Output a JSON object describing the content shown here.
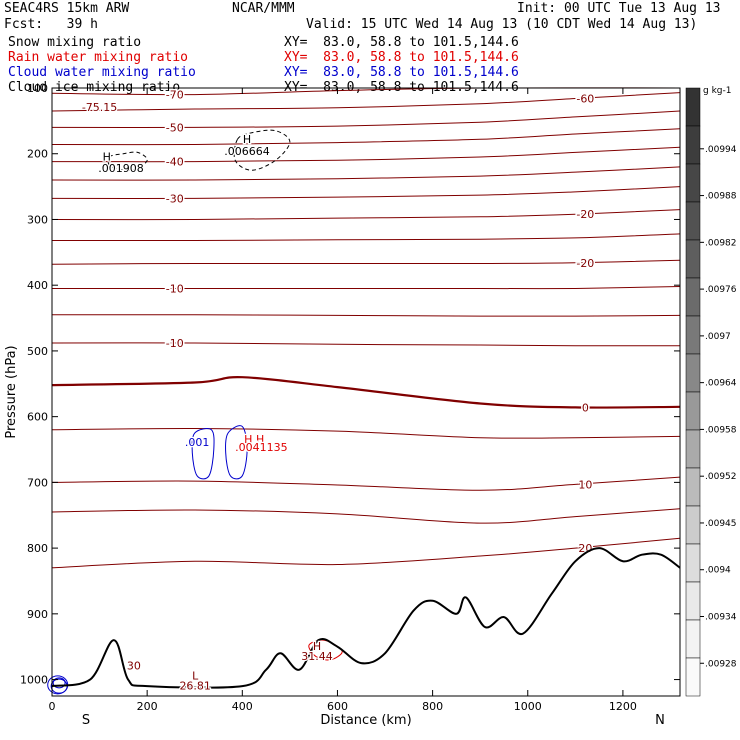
{
  "header": {
    "title": "SEAC4RS 15km ARW",
    "forecast": "Fcst:   39 h",
    "center": "NCAR/MMM",
    "init": "Init: 00 UTC Tue 13 Aug 13",
    "valid": "Valid: 15 UTC Wed 14 Aug 13 (10 CDT Wed 14 Aug 13)",
    "fields": [
      {
        "name": "Snow mixing ratio",
        "xy": "XY=  83.0, 58.8 to 101.5,144.6",
        "color": "#000000"
      },
      {
        "name": "Rain water mixing ratio",
        "xy": "XY=  83.0, 58.8 to 101.5,144.6",
        "color": "#e00000"
      },
      {
        "name": "Cloud water mixing ratio",
        "xy": "XY=  83.0, 58.8 to 101.5,144.6",
        "color": "#0000cc"
      },
      {
        "name": "Cloud ice mixing ratio",
        "xy": "XY=  83.0, 58.8 to 101.5,144.6",
        "color": "#000000"
      }
    ]
  },
  "chart_data": {
    "type": "line",
    "xlabel": "Distance (km)",
    "ylabel": "Pressure (hPa)",
    "xlim": [
      0,
      1320
    ],
    "ylim": [
      1025,
      100
    ],
    "xticks": [
      0,
      200,
      400,
      600,
      800,
      1000,
      1200
    ],
    "yticks": [
      100,
      200,
      300,
      400,
      500,
      600,
      700,
      800,
      900,
      1000
    ],
    "x_end_labels": {
      "left": "S",
      "right": "N"
    },
    "temperature_contours": [
      {
        "label": "-70",
        "values": [
          [
            0,
            108
          ],
          [
            300,
            110
          ],
          [
            600,
            104
          ],
          [
            900,
            100
          ],
          [
            1320,
            100
          ]
        ]
      },
      {
        "label": "-60",
        "values": [
          [
            0,
            135
          ],
          [
            300,
            132
          ],
          [
            600,
            130
          ],
          [
            900,
            124
          ],
          [
            1100,
            116
          ],
          [
            1320,
            107
          ]
        ]
      },
      {
        "label": "-50",
        "values": [
          [
            0,
            160
          ],
          [
            300,
            160
          ],
          [
            600,
            158
          ],
          [
            900,
            152
          ],
          [
            1100,
            144
          ],
          [
            1320,
            135
          ]
        ]
      },
      {
        "label": "",
        "values": [
          [
            0,
            186
          ],
          [
            300,
            186
          ],
          [
            600,
            183
          ],
          [
            900,
            178
          ],
          [
            1100,
            170
          ],
          [
            1320,
            162
          ]
        ]
      },
      {
        "label": "-40",
        "values": [
          [
            0,
            212
          ],
          [
            300,
            212
          ],
          [
            600,
            210
          ],
          [
            900,
            205
          ],
          [
            1100,
            198
          ],
          [
            1320,
            190
          ]
        ]
      },
      {
        "label": "",
        "values": [
          [
            0,
            240
          ],
          [
            300,
            240
          ],
          [
            600,
            238
          ],
          [
            900,
            234
          ],
          [
            1100,
            228
          ],
          [
            1320,
            220
          ]
        ]
      },
      {
        "label": "-30",
        "values": [
          [
            0,
            268
          ],
          [
            300,
            268
          ],
          [
            600,
            266
          ],
          [
            900,
            263
          ],
          [
            1100,
            258
          ],
          [
            1320,
            250
          ]
        ]
      },
      {
        "label": "-20",
        "values": [
          [
            0,
            300
          ],
          [
            300,
            300
          ],
          [
            600,
            298
          ],
          [
            900,
            296
          ],
          [
            1100,
            292
          ],
          [
            1320,
            285
          ]
        ]
      },
      {
        "label": "",
        "values": [
          [
            0,
            332
          ],
          [
            300,
            332
          ],
          [
            600,
            331
          ],
          [
            900,
            330
          ],
          [
            1100,
            328
          ],
          [
            1320,
            322
          ]
        ]
      },
      {
        "label": "-20",
        "values": [
          [
            0,
            368
          ],
          [
            300,
            367
          ],
          [
            600,
            367
          ],
          [
            900,
            367
          ],
          [
            1100,
            366
          ],
          [
            1320,
            362
          ]
        ]
      },
      {
        "label": "-10",
        "values": [
          [
            0,
            405
          ],
          [
            300,
            405
          ],
          [
            600,
            405
          ],
          [
            900,
            405
          ],
          [
            1100,
            405
          ],
          [
            1320,
            402
          ]
        ]
      },
      {
        "label": "",
        "values": [
          [
            0,
            445
          ],
          [
            300,
            445
          ],
          [
            600,
            446
          ],
          [
            900,
            447
          ],
          [
            1100,
            447
          ],
          [
            1320,
            446
          ]
        ]
      },
      {
        "label": "-10",
        "values": [
          [
            0,
            488
          ],
          [
            300,
            488
          ],
          [
            600,
            490
          ],
          [
            900,
            491
          ],
          [
            1100,
            492
          ],
          [
            1320,
            492
          ]
        ]
      },
      {
        "label": "0",
        "values": [
          [
            0,
            552
          ],
          [
            300,
            548
          ],
          [
            400,
            540
          ],
          [
            600,
            555
          ],
          [
            900,
            580
          ],
          [
            1100,
            586
          ],
          [
            1320,
            585
          ]
        ]
      },
      {
        "label": "",
        "values": [
          [
            0,
            620
          ],
          [
            300,
            618
          ],
          [
            600,
            622
          ],
          [
            900,
            632
          ],
          [
            1100,
            632
          ],
          [
            1320,
            630
          ]
        ]
      },
      {
        "label": "10",
        "values": [
          [
            0,
            700
          ],
          [
            300,
            698
          ],
          [
            600,
            704
          ],
          [
            900,
            712
          ],
          [
            1100,
            703
          ],
          [
            1320,
            692
          ]
        ]
      },
      {
        "label": "",
        "values": [
          [
            0,
            745
          ],
          [
            300,
            742
          ],
          [
            600,
            748
          ],
          [
            900,
            762
          ],
          [
            1100,
            752
          ],
          [
            1320,
            740
          ]
        ]
      },
      {
        "label": "20",
        "values": [
          [
            0,
            830
          ],
          [
            300,
            820
          ],
          [
            600,
            825
          ],
          [
            900,
            812
          ],
          [
            1100,
            800
          ],
          [
            1320,
            785
          ]
        ]
      }
    ],
    "terrain_profile": [
      [
        0,
        1010
      ],
      [
        80,
        1000
      ],
      [
        130,
        940
      ],
      [
        160,
        1000
      ],
      [
        200,
        1010
      ],
      [
        400,
        1010
      ],
      [
        450,
        985
      ],
      [
        480,
        960
      ],
      [
        520,
        985
      ],
      [
        560,
        940
      ],
      [
        600,
        950
      ],
      [
        650,
        975
      ],
      [
        700,
        960
      ],
      [
        760,
        895
      ],
      [
        800,
        880
      ],
      [
        850,
        900
      ],
      [
        870,
        875
      ],
      [
        910,
        920
      ],
      [
        950,
        905
      ],
      [
        990,
        930
      ],
      [
        1050,
        870
      ],
      [
        1100,
        820
      ],
      [
        1150,
        800
      ],
      [
        1200,
        820
      ],
      [
        1240,
        810
      ],
      [
        1280,
        810
      ],
      [
        1320,
        830
      ]
    ],
    "annotations": [
      {
        "text": "-75.15",
        "x": 100,
        "y": 135
      },
      {
        "text": "H",
        "x": 115,
        "y": 210
      },
      {
        "text": ".001908",
        "x": 145,
        "y": 228
      },
      {
        "text": "H",
        "x": 410,
        "y": 184
      },
      {
        "text": ".006664",
        "x": 410,
        "y": 202
      },
      {
        "text": ".001",
        "x": 305,
        "y": 645
      },
      {
        "text": "H H",
        "x": 425,
        "y": 640
      },
      {
        "text": ".0041135",
        "x": 440,
        "y": 652
      },
      {
        "text": "H",
        "x": 557,
        "y": 955
      },
      {
        "text": "31.44",
        "x": 557,
        "y": 970
      },
      {
        "text": "30",
        "x": 172,
        "y": 985
      },
      {
        "text": "L",
        "x": 301,
        "y": 1000
      },
      {
        "text": "26.81",
        "x": 301,
        "y": 1015
      }
    ],
    "snow_contours": [
      {
        "level": "0.001908",
        "closed": true,
        "points": [
          [
            120,
            205
          ],
          [
            150,
            200
          ],
          [
            180,
            198
          ],
          [
            200,
            210
          ],
          [
            170,
            225
          ],
          [
            125,
            220
          ]
        ]
      },
      {
        "level": "0.006664",
        "closed": true,
        "points": [
          [
            390,
            178
          ],
          [
            420,
            168
          ],
          [
            470,
            165
          ],
          [
            500,
            182
          ],
          [
            470,
            210
          ],
          [
            420,
            225
          ],
          [
            385,
            210
          ]
        ]
      }
    ],
    "cloud_water_contours": [
      {
        "level": "0.001",
        "closed": true,
        "points": [
          [
            300,
            625
          ],
          [
            335,
            620
          ],
          [
            340,
            650
          ],
          [
            330,
            690
          ],
          [
            305,
            690
          ],
          [
            295,
            655
          ]
        ]
      },
      {
        "level": "",
        "closed": true,
        "points": [
          [
            370,
            625
          ],
          [
            400,
            615
          ],
          [
            410,
            650
          ],
          [
            400,
            690
          ],
          [
            375,
            690
          ],
          [
            365,
            655
          ]
        ]
      }
    ],
    "colorbar": {
      "unit": "g kg-1",
      "labels": [
        ".00994",
        ".00988",
        ".00982",
        ".00976",
        ".0097",
        ".00964",
        ".00958",
        ".00952",
        ".00945",
        ".0094",
        ".00934",
        ".00928"
      ],
      "colors": [
        "#333333",
        "#3d3d3d",
        "#474747",
        "#525252",
        "#5e5e5e",
        "#6b6b6b",
        "#797979",
        "#888888",
        "#999999",
        "#aaaaaa",
        "#bbbbbb",
        "#cccccc",
        "#dddddd",
        "#e9e9e9",
        "#f3f3f3",
        "#fafafa"
      ]
    },
    "colors": {
      "temperature": "#800000",
      "terrain": "#000000",
      "snow": "#000000",
      "cloud_water": "#0000cc",
      "rain": "#e00000"
    }
  }
}
